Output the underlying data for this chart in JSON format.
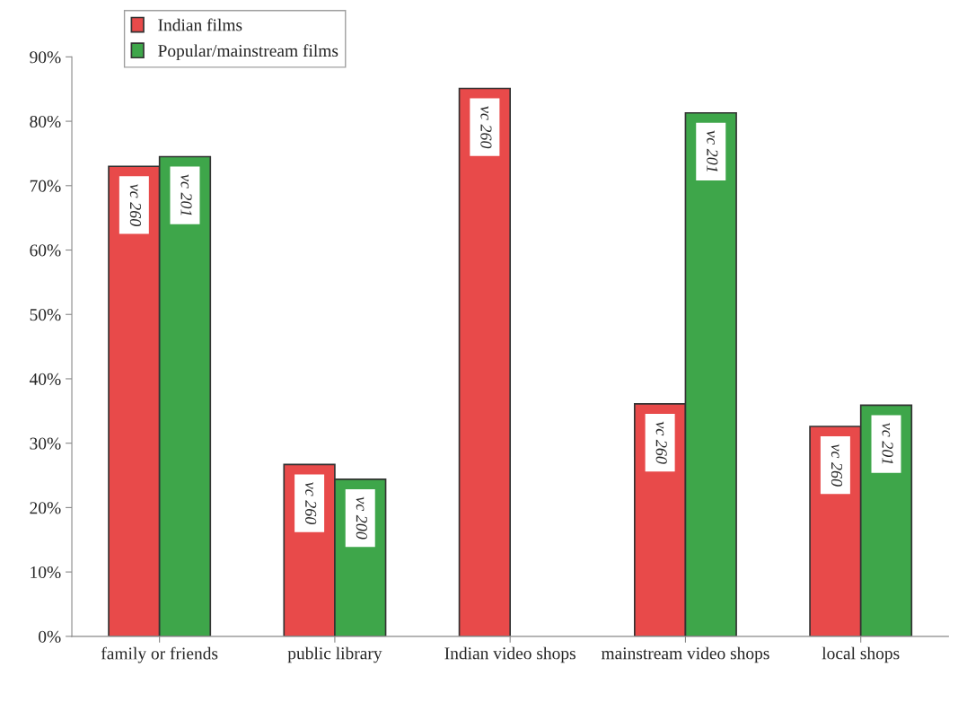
{
  "chart_data": {
    "type": "bar",
    "categories": [
      "family or friends",
      "public library",
      "Indian video shops",
      "mainstream video shops",
      "local shops"
    ],
    "series": [
      {
        "name": "Indian films",
        "color": "#e84a4a",
        "values": [
          73.0,
          26.7,
          85.1,
          36.1,
          32.6
        ],
        "value_labels": [
          "vc 260",
          "vc 260",
          "vc 260",
          "vc 260",
          "vc 260"
        ]
      },
      {
        "name": "Popular/mainstream films",
        "color": "#3ea64a",
        "values": [
          74.5,
          24.4,
          null,
          81.3,
          35.9
        ],
        "value_labels": [
          "vc 201",
          "vc 200",
          null,
          "vc 201",
          "vc 201"
        ]
      }
    ],
    "ylim": [
      0,
      90
    ],
    "yticks": [
      {
        "value": 0,
        "label": "0%"
      },
      {
        "value": 10,
        "label": "10%"
      },
      {
        "value": 20,
        "label": "20%"
      },
      {
        "value": 30,
        "label": "30%"
      },
      {
        "value": 40,
        "label": "40%"
      },
      {
        "value": 50,
        "label": "50%"
      },
      {
        "value": 60,
        "label": "60%"
      },
      {
        "value": 70,
        "label": "70%"
      },
      {
        "value": 80,
        "label": "80%"
      },
      {
        "value": 90,
        "label": "90%"
      }
    ],
    "grid": false,
    "legend": "top left"
  }
}
